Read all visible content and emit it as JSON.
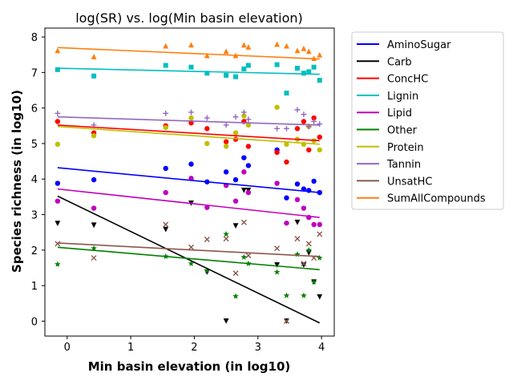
{
  "chart_data": {
    "type": "scatter",
    "title": "log(SR) vs. log(Min basin elevation)",
    "xlabel": "Min basin elevation (in log10)",
    "ylabel": "Species richness (in log10)",
    "xlim": [
      -0.35,
      4.2
    ],
    "ylim": [
      -0.42,
      8.25
    ],
    "xticks": [
      0,
      1,
      2,
      3,
      4
    ],
    "yticks": [
      0,
      1,
      2,
      3,
      4,
      5,
      6,
      7,
      8
    ],
    "legend_position": "outside-right",
    "x": [
      -0.15,
      0.42,
      1.55,
      1.95,
      2.2,
      2.5,
      2.65,
      2.78,
      2.85,
      3.3,
      3.45,
      3.62,
      3.72,
      3.8,
      3.88,
      3.97
    ],
    "series": [
      {
        "name": "AminoSugar",
        "color": "#0000ff",
        "marker": "circle",
        "trend": [
          4.32,
          3.62
        ],
        "values": [
          3.88,
          3.98,
          4.3,
          4.42,
          3.92,
          4.2,
          3.98,
          4.6,
          4.38,
          4.82,
          3.47,
          3.86,
          3.72,
          3.68,
          3.94,
          3.62
        ]
      },
      {
        "name": "Carb",
        "color": "#000000",
        "marker": "triangle-down",
        "trend": [
          3.52,
          -0.05
        ],
        "values": [
          2.75,
          2.7,
          2.58,
          3.32,
          1.38,
          0.0,
          2.68,
          3.68,
          3.68,
          1.58,
          0.0,
          2.78,
          1.58,
          1.92,
          1.1,
          0.68
        ]
      },
      {
        "name": "ConcHC",
        "color": "#ff0000",
        "marker": "circle",
        "trend": [
          5.52,
          5.08
        ],
        "values": [
          5.62,
          5.3,
          5.5,
          5.58,
          5.42,
          5.05,
          5.12,
          5.62,
          4.92,
          4.75,
          4.48,
          5.42,
          5.62,
          4.82,
          5.72,
          5.18
        ]
      },
      {
        "name": "Lignin",
        "color": "#00bfbf",
        "marker": "square",
        "trend": [
          7.12,
          6.95
        ],
        "values": [
          7.08,
          6.9,
          7.2,
          7.15,
          6.98,
          6.92,
          6.88,
          7.1,
          7.2,
          7.22,
          6.42,
          7.12,
          6.98,
          7.02,
          7.15,
          6.78
        ]
      },
      {
        "name": "Lipid",
        "color": "#bf00bf",
        "marker": "circle",
        "trend": [
          3.72,
          2.92
        ],
        "values": [
          3.38,
          3.18,
          3.62,
          4.02,
          3.2,
          3.82,
          3.38,
          4.2,
          3.62,
          3.88,
          2.76,
          3.42,
          3.18,
          2.92,
          2.72,
          2.72
        ]
      },
      {
        "name": "Other",
        "color": "#008000",
        "marker": "star",
        "trend": [
          2.08,
          1.45
        ],
        "values": [
          1.6,
          2.05,
          1.82,
          1.62,
          1.42,
          2.45,
          0.7,
          1.8,
          1.62,
          1.38,
          0.72,
          1.88,
          0.72,
          2.0,
          1.1,
          1.78
        ]
      },
      {
        "name": "Protein",
        "color": "#bfbf00",
        "marker": "circle",
        "trend": [
          5.48,
          4.98
        ],
        "values": [
          4.98,
          5.22,
          5.45,
          5.72,
          5.0,
          4.92,
          5.3,
          5.78,
          5.52,
          6.02,
          4.98,
          5.12,
          4.98,
          5.48,
          5.08,
          4.82
        ]
      },
      {
        "name": "Tannin",
        "color": "#9467bd",
        "marker": "plus",
        "trend": [
          5.75,
          5.52
        ],
        "values": [
          5.85,
          5.52,
          5.85,
          5.88,
          5.72,
          5.52,
          5.75,
          5.88,
          5.68,
          5.42,
          5.42,
          5.95,
          5.82,
          5.48,
          5.62,
          5.55
        ]
      },
      {
        "name": "UnsatHC",
        "color": "#8c564b",
        "marker": "x",
        "trend": [
          2.2,
          1.82
        ],
        "values": [
          2.18,
          1.78,
          2.72,
          2.08,
          2.3,
          2.32,
          1.35,
          2.78,
          1.85,
          2.05,
          0.0,
          2.32,
          1.62,
          2.18,
          1.78,
          2.45
        ]
      },
      {
        "name": "SumAllCompounds",
        "color": "#ff7f0e",
        "marker": "triangle-up",
        "trend": [
          7.7,
          7.38
        ],
        "values": [
          7.62,
          7.45,
          7.75,
          7.78,
          7.48,
          7.6,
          7.48,
          7.78,
          7.72,
          7.8,
          7.75,
          7.62,
          7.68,
          7.6,
          7.4,
          7.5
        ]
      }
    ]
  }
}
